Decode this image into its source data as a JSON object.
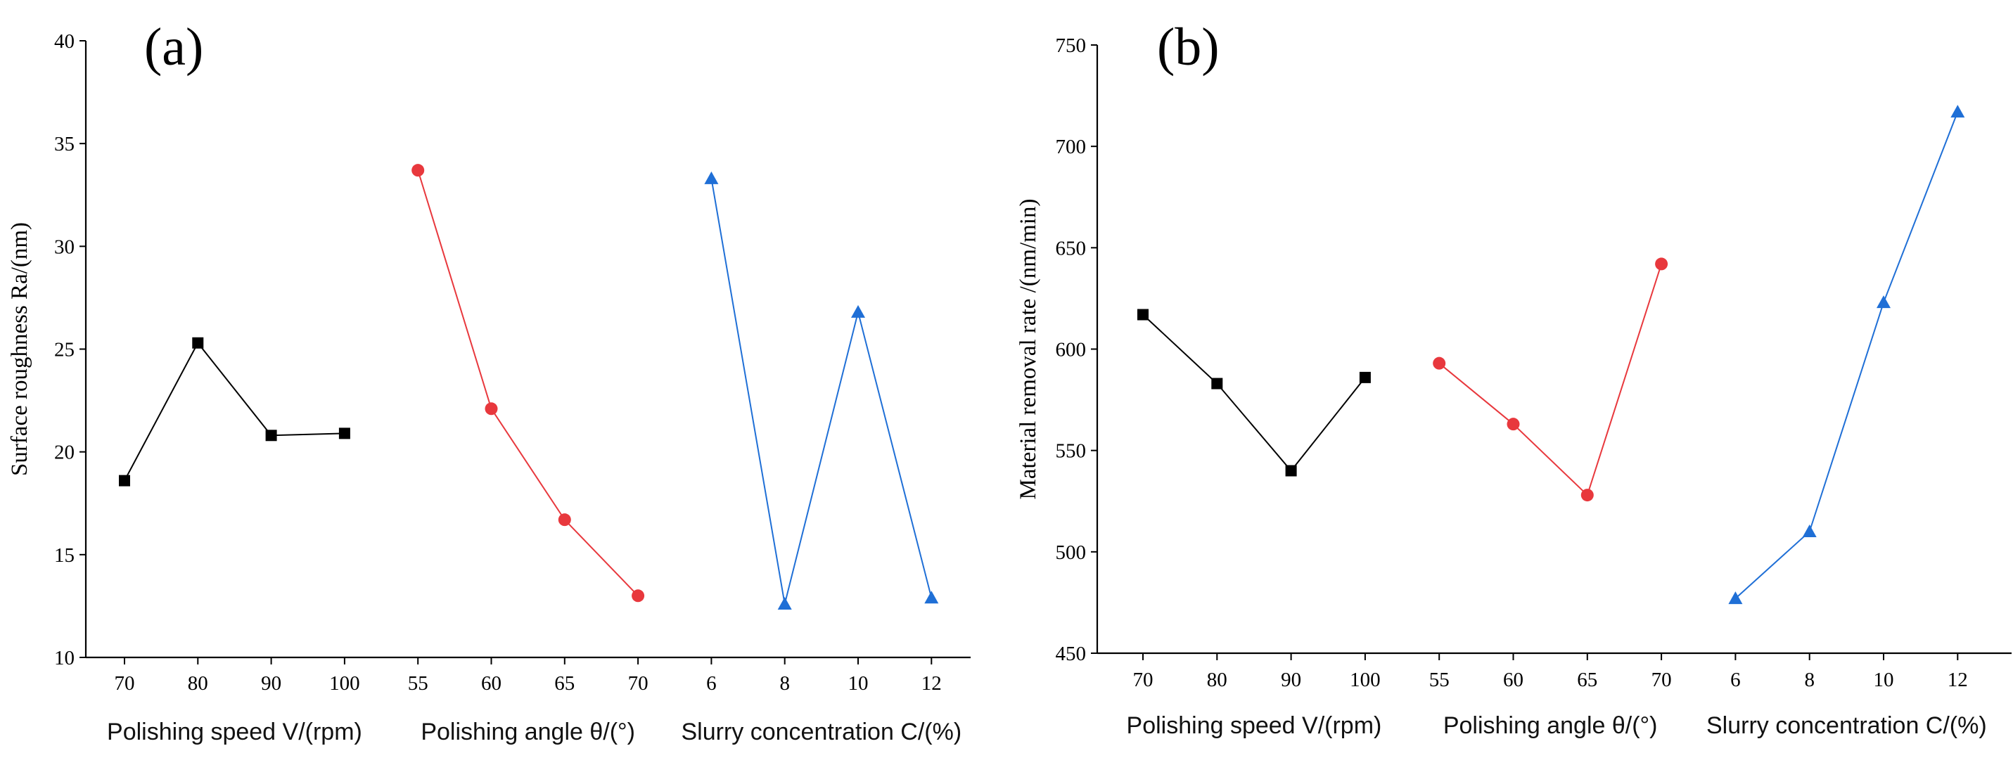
{
  "chart_data": [
    {
      "type": "line",
      "panel_label": "(a)",
      "ylabel": "Surface roughness Ra/(nm)",
      "ylim": [
        10,
        40
      ],
      "yticks": [
        10,
        15,
        20,
        25,
        30,
        35,
        40
      ],
      "groups": [
        {
          "name": "Polishing speed V/(rpm)",
          "marker": "square",
          "color": "#000000",
          "categories": [
            "70",
            "80",
            "90",
            "100"
          ],
          "values": [
            18.6,
            25.3,
            20.8,
            20.9
          ]
        },
        {
          "name": "Polishing angle θ/(°)",
          "marker": "circle",
          "color": "#e8383d",
          "categories": [
            "55",
            "60",
            "65",
            "70"
          ],
          "values": [
            33.7,
            22.1,
            16.7,
            13.0
          ]
        },
        {
          "name": "Slurry concentration C/(%)",
          "marker": "triangle",
          "color": "#1f6fd6",
          "categories": [
            "6",
            "8",
            "10",
            "12"
          ],
          "values": [
            33.3,
            12.6,
            26.8,
            12.9
          ]
        }
      ]
    },
    {
      "type": "line",
      "panel_label": "(b)",
      "ylabel": "Material removal rate /(nm/min)",
      "ylim": [
        450,
        750
      ],
      "yticks": [
        450,
        500,
        550,
        600,
        650,
        700,
        750
      ],
      "groups": [
        {
          "name": "Polishing speed V/(rpm)",
          "marker": "square",
          "color": "#000000",
          "categories": [
            "70",
            "80",
            "90",
            "100"
          ],
          "values": [
            617,
            583,
            540,
            586
          ]
        },
        {
          "name": "Polishing angle θ/(°)",
          "marker": "circle",
          "color": "#e8383d",
          "categories": [
            "55",
            "60",
            "65",
            "70"
          ],
          "values": [
            593,
            563,
            528,
            642
          ]
        },
        {
          "name": "Slurry concentration C/(%)",
          "marker": "triangle",
          "color": "#1f6fd6",
          "categories": [
            "6",
            "8",
            "10",
            "12"
          ],
          "values": [
            477,
            510,
            623,
            717
          ]
        }
      ]
    }
  ]
}
